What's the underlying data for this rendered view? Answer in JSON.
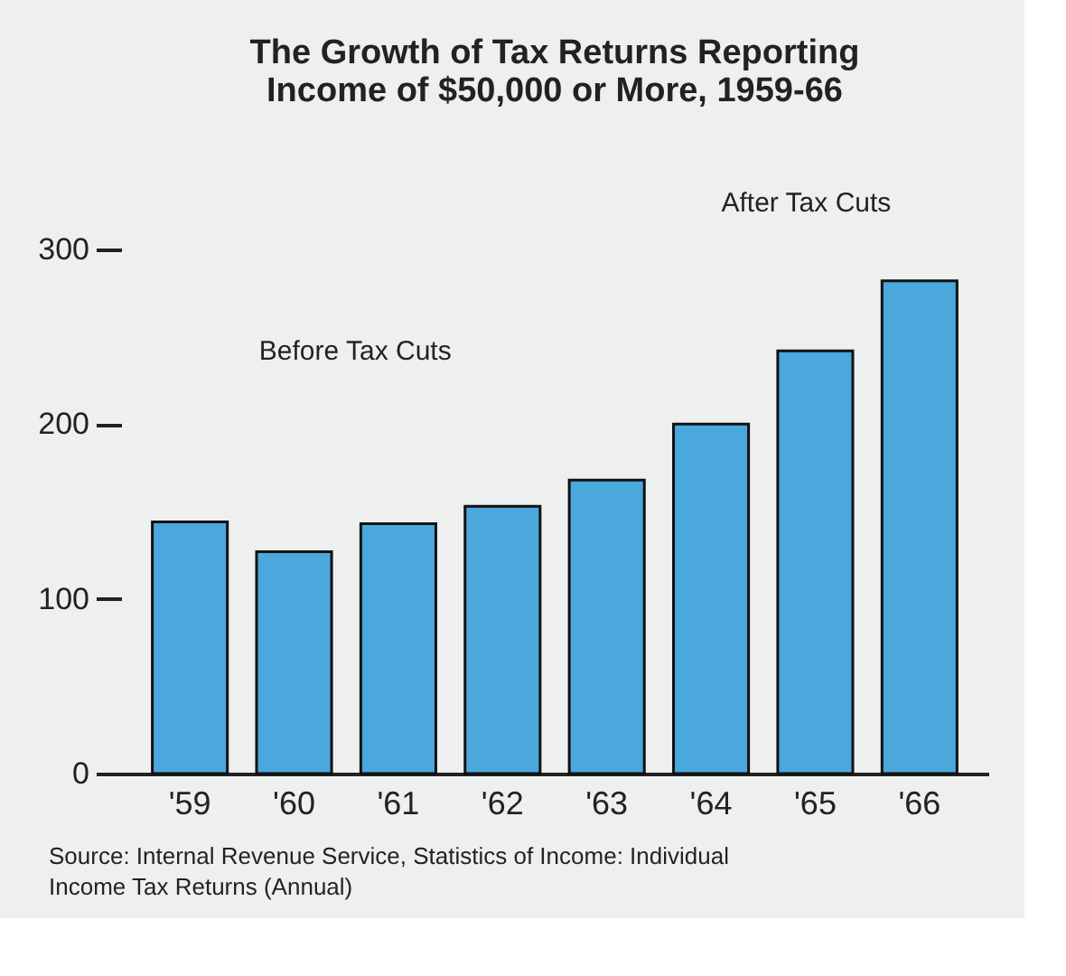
{
  "chart_data": {
    "type": "bar",
    "title": [
      "The Growth of Tax Returns Reporting",
      "Income of $50,000 or More, 1959-66"
    ],
    "categories": [
      "'59",
      "'60",
      "'61",
      "'62",
      "'63",
      "'64",
      "'65",
      "'66"
    ],
    "values": [
      144,
      127,
      143,
      153,
      168,
      200,
      242,
      282
    ],
    "color": "#4aa8dc",
    "ylim": [
      0,
      300
    ],
    "yticks": [
      0,
      100,
      200,
      300
    ],
    "grid": false,
    "annotations": [
      "Before Tax Cuts",
      "After Tax Cuts",
      "Source: Internal Revenue Service, Statistics of Income: Individual Income Tax Returns (Annual)"
    ]
  }
}
